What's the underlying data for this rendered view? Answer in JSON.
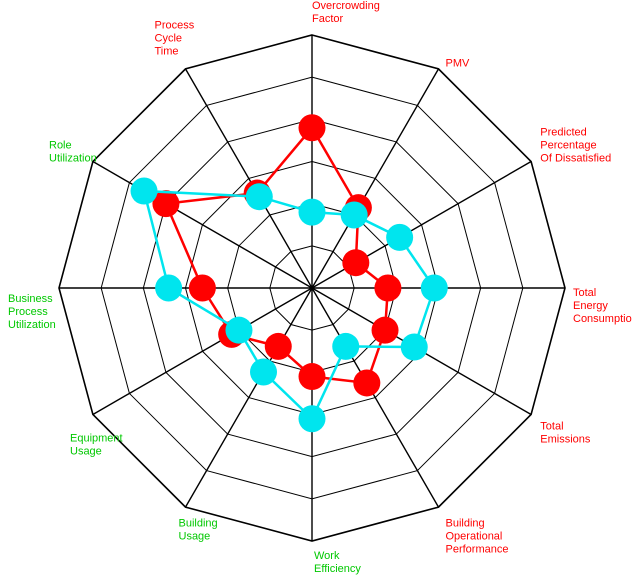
{
  "colors": {
    "background": "#ffffff",
    "grid": "#000000",
    "series_red": "#ff0000",
    "series_cyan": "#00e5ee",
    "label_red": "#ff0000",
    "label_green": "#00c800"
  },
  "chart_data": {
    "type": "radar",
    "title": "",
    "rings": 6,
    "r_range": [
      0,
      6
    ],
    "grid": true,
    "legend": "none",
    "axes": [
      {
        "lines": [
          "Overcrowding",
          "Factor"
        ],
        "color": "red"
      },
      {
        "lines": [
          "PMV"
        ],
        "color": "red"
      },
      {
        "lines": [
          "Predicted",
          "Percentage",
          "Of Dissatisfied"
        ],
        "color": "red"
      },
      {
        "lines": [
          "Total",
          "Energy",
          "Consumption"
        ],
        "color": "red"
      },
      {
        "lines": [
          "Total",
          "Emissions"
        ],
        "color": "red"
      },
      {
        "lines": [
          "Building",
          "Operational",
          "Performance"
        ],
        "color": "red"
      },
      {
        "lines": [
          "Work",
          "Efficiency"
        ],
        "color": "green"
      },
      {
        "lines": [
          "Building",
          "Usage"
        ],
        "color": "green"
      },
      {
        "lines": [
          "Equipment",
          "Usage"
        ],
        "color": "green"
      },
      {
        "lines": [
          "Business",
          "Process",
          "Utilization"
        ],
        "color": "green"
      },
      {
        "lines": [
          "Role",
          "Utilization"
        ],
        "color": "green"
      },
      {
        "lines": [
          "Process",
          "Cycle",
          "Time"
        ],
        "color": "red"
      }
    ],
    "series": [
      {
        "color": "red",
        "values": [
          3.8,
          2.2,
          1.2,
          1.8,
          2.0,
          2.6,
          2.1,
          1.6,
          2.2,
          2.6,
          4.0,
          2.6
        ]
      },
      {
        "color": "cyan",
        "values": [
          1.8,
          2.0,
          2.4,
          2.9,
          2.8,
          1.6,
          3.1,
          2.3,
          2.0,
          3.4,
          4.6,
          2.5
        ]
      }
    ]
  }
}
